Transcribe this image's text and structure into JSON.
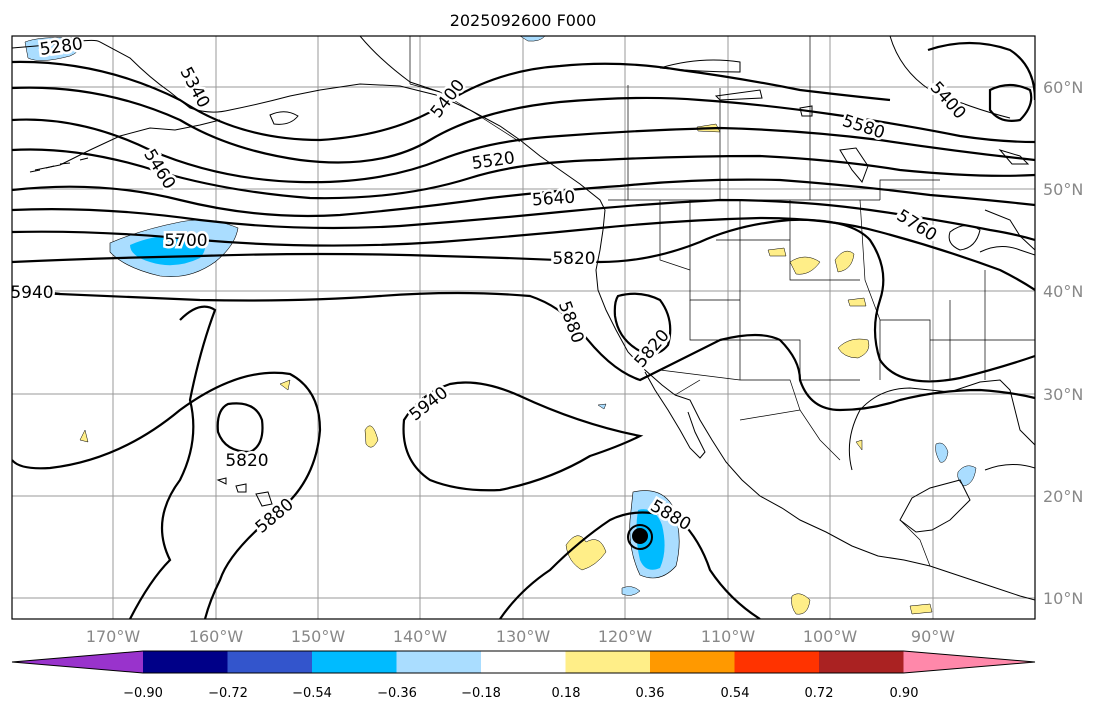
{
  "title": "2025092600 F000",
  "map": {
    "lon_labels": [
      "170°W",
      "160°W",
      "150°W",
      "140°W",
      "130°W",
      "120°W",
      "110°W",
      "100°W",
      "90°W"
    ],
    "lat_labels": [
      "60°N",
      "50°N",
      "40°N",
      "30°N",
      "20°N",
      "10°N"
    ],
    "contour_labels": [
      "5280",
      "5340",
      "5460",
      "5400",
      "5520",
      "5580",
      "5640",
      "5700",
      "5760",
      "5820",
      "5880",
      "5940",
      "5400"
    ],
    "colors": {
      "purple": "#9933cc",
      "navy": "#000088",
      "royal": "#3355cc",
      "deep_sky": "#00bbff",
      "light_sky": "#aaddff",
      "white": "#ffffff",
      "yellow": "#ffee88",
      "orange": "#ff9900",
      "red_orange": "#ff3300",
      "firebrick": "#aa2222",
      "pink": "#ff88aa"
    }
  },
  "colorbar": {
    "ticks": [
      "−0.90",
      "−0.72",
      "−0.54",
      "−0.36",
      "−0.18",
      "0.18",
      "0.36",
      "0.54",
      "0.72",
      "0.90"
    ]
  }
}
